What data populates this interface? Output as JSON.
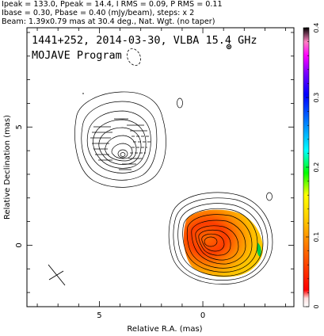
{
  "header": {
    "line1": "Ipeak = 133.0, Ppeak = 14.4, I RMS = 0.09, P RMS = 0.11",
    "line2": "Ibase = 0.30, Pbase = 0.40 (mJy/beam), steps: x 2",
    "line3": "Beam: 1.39x0.79 mas at 30.4 deg., Nat. Wgt. (no taper)"
  },
  "plot": {
    "title_line1": "1441+252, 2014-03-30, VLBA 15.4 GHz",
    "title_line2": "MOJAVE Program",
    "xlabel": "Relative R.A. (mas)",
    "ylabel": "Relative Declination (mas)",
    "xticks": [
      {
        "value": 5,
        "label": "5"
      },
      {
        "value": 0,
        "label": "0"
      }
    ],
    "yticks": [
      {
        "value": 5,
        "label": "5"
      },
      {
        "value": 0,
        "label": "0"
      }
    ],
    "xrange_mas": [
      8.5,
      -4.4
    ],
    "yrange_mas": [
      -2.6,
      9.2
    ]
  },
  "colorbar": {
    "ticks": [
      {
        "value": 0,
        "label": "0"
      },
      {
        "value": 0.1,
        "label": "0.1"
      },
      {
        "value": 0.2,
        "label": "0.2"
      },
      {
        "value": 0.3,
        "label": "0.3"
      },
      {
        "value": 0.4,
        "label": "0.4"
      }
    ],
    "range": [
      0,
      0.4
    ],
    "colors": [
      "#ffffff",
      "#ff0000",
      "#ff6600",
      "#ffcc00",
      "#ffff00",
      "#00ff00",
      "#00ffff",
      "#0080ff",
      "#0000ff",
      "#8000ff",
      "#ff00ff",
      "#ff80ff",
      "#000000"
    ]
  }
}
